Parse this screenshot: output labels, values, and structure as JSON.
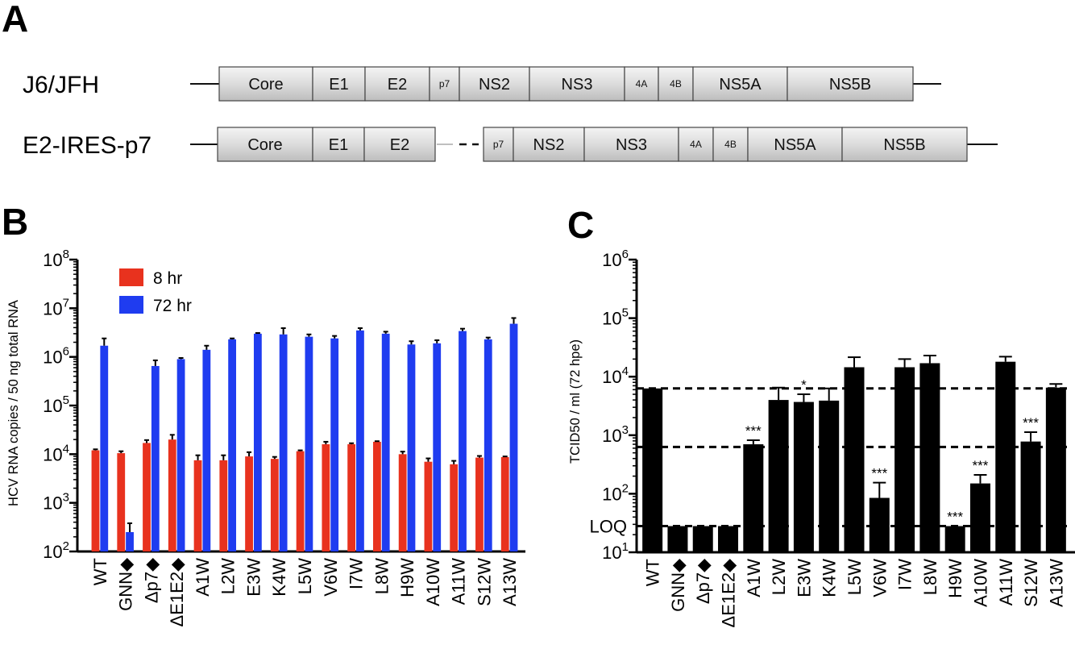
{
  "panels": {
    "a": "A",
    "b": "B",
    "c": "C"
  },
  "colors": {
    "series_8hr": "#e8321e",
    "series_72hr": "#1f3cf0",
    "bars_c": "#000000"
  },
  "genome": {
    "constructs": [
      {
        "name": "J6/JFH",
        "segments": [
          {
            "label": "Core",
            "small": false
          },
          {
            "label": "E1",
            "small": false
          },
          {
            "label": "E2",
            "small": false
          },
          {
            "label": "p7",
            "small": true
          },
          {
            "label": "NS2",
            "small": false
          },
          {
            "label": "NS3",
            "small": false
          },
          {
            "label": "4A",
            "small": true
          },
          {
            "label": "4B",
            "small": true
          },
          {
            "label": "NS5A",
            "small": false
          },
          {
            "label": "NS5B",
            "small": false
          }
        ]
      },
      {
        "name": "E2-IRES-p7",
        "segments": [
          {
            "label": "Core",
            "small": false
          },
          {
            "label": "E1",
            "small": false
          },
          {
            "label": "E2",
            "small": false
          },
          {
            "label": "p7",
            "small": true
          },
          {
            "label": "NS2",
            "small": false
          },
          {
            "label": "NS3",
            "small": false
          },
          {
            "label": "4A",
            "small": true
          },
          {
            "label": "4B",
            "small": true
          },
          {
            "label": "NS5A",
            "small": false
          },
          {
            "label": "NS5B",
            "small": false
          }
        ]
      }
    ]
  },
  "chart_data": [
    {
      "type": "bar",
      "panel": "B",
      "ylabel": "HCV RNA copies / 50 ng total RNA",
      "yscale": "log",
      "ylim": [
        100,
        100000000
      ],
      "yticks": [
        {
          "value": 100,
          "base": "10",
          "exp": "2"
        },
        {
          "value": 1000,
          "base": "10",
          "exp": "3"
        },
        {
          "value": 10000,
          "base": "10",
          "exp": "4"
        },
        {
          "value": 100000,
          "base": "10",
          "exp": "5"
        },
        {
          "value": 1000000,
          "base": "10",
          "exp": "6"
        },
        {
          "value": 10000000,
          "base": "10",
          "exp": "7"
        },
        {
          "value": 100000000,
          "base": "10",
          "exp": "8"
        }
      ],
      "legend_position": "top-left",
      "categories": [
        "WT",
        "GNN◆",
        "Δp7◆",
        "ΔE1E2◆",
        "A1W",
        "L2W",
        "E3W",
        "K4W",
        "L5W",
        "V6W",
        "I7W",
        "L8W",
        "H9W",
        "A10W",
        "A11W",
        "S12W",
        "A13W"
      ],
      "series": [
        {
          "name": "8 hr",
          "color": "#e8321e",
          "values": [
            12000,
            10500,
            17000,
            20000,
            7500,
            7500,
            9000,
            8000,
            11500,
            16000,
            16000,
            18000,
            10000,
            7000,
            6200,
            8500,
            8700
          ],
          "errors": [
            600,
            1000,
            2500,
            5000,
            2000,
            2000,
            2000,
            800,
            500,
            2000,
            800,
            500,
            1300,
            1200,
            1100,
            700,
            300
          ]
        },
        {
          "name": "72 hr",
          "color": "#1f3cf0",
          "values": [
            1700000,
            250,
            650000,
            900000,
            1400000,
            2300000,
            3000000,
            2900000,
            2600000,
            2400000,
            3500000,
            3000000,
            1800000,
            1900000,
            3400000,
            2300000,
            4800000
          ],
          "errors": [
            700000,
            130,
            200000,
            50000,
            300000,
            100000,
            100000,
            1000000,
            300000,
            300000,
            400000,
            300000,
            300000,
            300000,
            400000,
            200000,
            1500000
          ]
        }
      ]
    },
    {
      "type": "bar",
      "panel": "C",
      "ylabel": "TCID50 / ml (72 hpe)",
      "yscale": "log",
      "ylim": [
        10,
        1000000
      ],
      "yticks": [
        {
          "value": 10,
          "base": "10",
          "exp": "1"
        },
        {
          "value": 100,
          "base": "10",
          "exp": "2"
        },
        {
          "value": 1000,
          "base": "10",
          "exp": "3"
        },
        {
          "value": 10000,
          "base": "10",
          "exp": "4"
        },
        {
          "value": 100000,
          "base": "10",
          "exp": "5"
        },
        {
          "value": 1000000,
          "base": "10",
          "exp": "6"
        }
      ],
      "loq_label": "LOQ",
      "reference_lines": [
        6300,
        630,
        28
      ],
      "categories": [
        "WT",
        "GNN◆",
        "Δp7◆",
        "ΔE1E2◆",
        "A1W",
        "L2W",
        "E3W",
        "K4W",
        "L5W",
        "V6W",
        "I7W",
        "L8W",
        "H9W",
        "A10W",
        "A11W",
        "S12W",
        "A13W"
      ],
      "values": [
        6300,
        28,
        28,
        28,
        700,
        4000,
        3700,
        3900,
        14500,
        85,
        14500,
        17000,
        28,
        150,
        18000,
        780,
        6500
      ],
      "errors": [
        0,
        0,
        0,
        0,
        120,
        2500,
        1300,
        2400,
        7000,
        70,
        5500,
        6000,
        0,
        60,
        4000,
        350,
        1000
      ],
      "significance": [
        "",
        "",
        "",
        "",
        "***",
        "",
        "*",
        "",
        "",
        "***",
        "",
        "",
        "***",
        "***",
        "",
        "***",
        ""
      ]
    }
  ]
}
